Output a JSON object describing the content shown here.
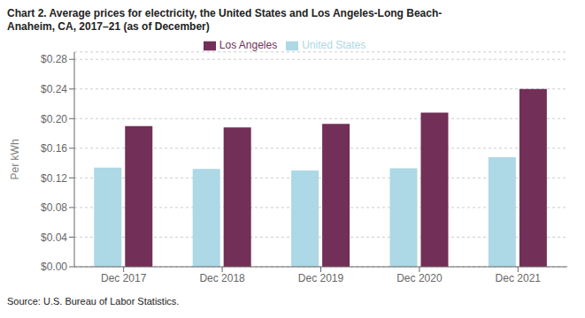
{
  "chart_data": {
    "type": "bar",
    "title": "Chart 2. Average prices for electricity, the United States and Los Angeles-Long Beach-\nAnaheim, CA, 2017–21 (as of December)",
    "ylabel": "Per kWh",
    "source": "Source: U.S. Bureau of Labor Statistics.",
    "categories": [
      "Dec 2017",
      "Dec 2018",
      "Dec 2019",
      "Dec 2020",
      "Dec 2021"
    ],
    "series": [
      {
        "name": "United States",
        "color": "#add8e6",
        "values": [
          0.134,
          0.132,
          0.13,
          0.133,
          0.148
        ]
      },
      {
        "name": "Los Angeles",
        "color": "#722f57",
        "values": [
          0.19,
          0.188,
          0.193,
          0.208,
          0.24
        ]
      }
    ],
    "ylim": [
      0,
      0.29
    ],
    "yticks": [
      {
        "value": 0.0,
        "label": "$0.00"
      },
      {
        "value": 0.04,
        "label": "$0.04"
      },
      {
        "value": 0.08,
        "label": "$0.08"
      },
      {
        "value": 0.12,
        "label": "$0.12"
      },
      {
        "value": 0.16,
        "label": "$0.16"
      },
      {
        "value": 0.2,
        "label": "$0.20"
      },
      {
        "value": 0.24,
        "label": "$0.24"
      },
      {
        "value": 0.28,
        "label": "$0.28"
      }
    ],
    "grid": true,
    "legend": "top"
  }
}
